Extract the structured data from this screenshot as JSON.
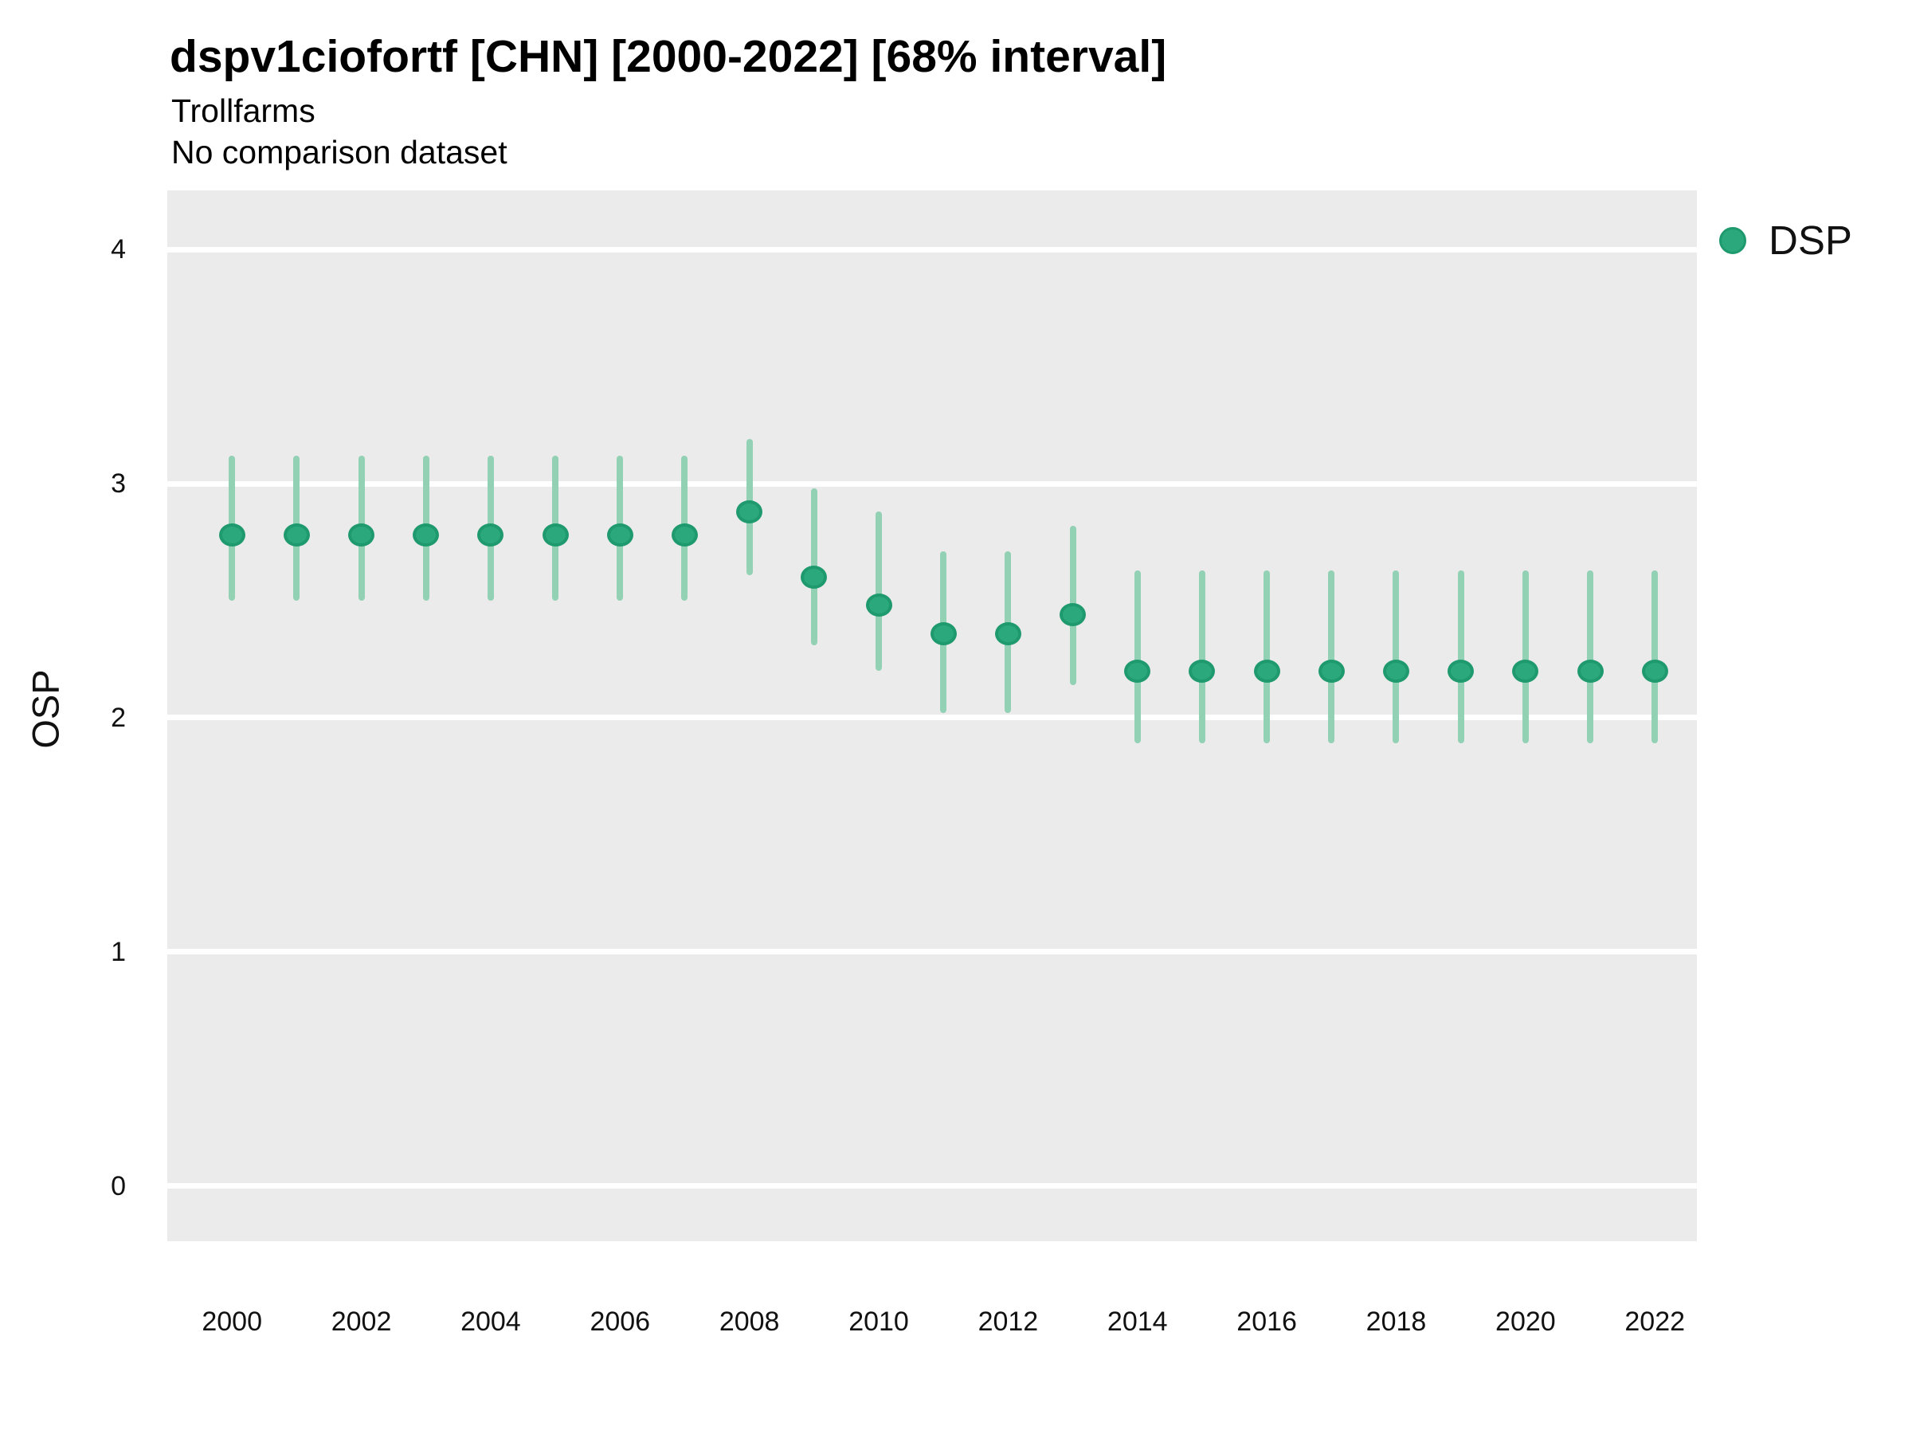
{
  "header": {
    "title": "dspv1ciofortf [CHN] [2000-2022] [68% interval]",
    "subtitle": "Trollfarms",
    "note": "No comparison dataset"
  },
  "legend": {
    "label": "DSP"
  },
  "colors": {
    "panel_background": "#EBEBEB",
    "gridline": "#FFFFFF",
    "point_fill": "#2BA87C",
    "point_stroke": "#1F9A6E",
    "interval_line": "#93D1B5",
    "text": "#111111"
  },
  "chart_data": {
    "type": "scatter",
    "variant": "pointrange",
    "title": "dspv1ciofortf [CHN] [2000-2022] [68% interval]",
    "subtitle": "Trollfarms",
    "note": "No comparison dataset",
    "interval_level": "68%",
    "xlabel": "",
    "ylabel": "OSP",
    "xlim": [
      1999.0,
      2022.65
    ],
    "ylim": [
      -0.235,
      4.252
    ],
    "xticks": [
      2000,
      2002,
      2004,
      2006,
      2008,
      2010,
      2012,
      2014,
      2016,
      2018,
      2020,
      2022
    ],
    "yticks": [
      0,
      1,
      2,
      3,
      4
    ],
    "grid": "horizontal-white-on-gray",
    "legend_position": "right",
    "series": [
      {
        "name": "DSP",
        "points": [
          {
            "x": 2000,
            "y": 2.78,
            "lo": 2.5,
            "hi": 3.12
          },
          {
            "x": 2001,
            "y": 2.78,
            "lo": 2.5,
            "hi": 3.12
          },
          {
            "x": 2002,
            "y": 2.78,
            "lo": 2.5,
            "hi": 3.12
          },
          {
            "x": 2003,
            "y": 2.78,
            "lo": 2.5,
            "hi": 3.12
          },
          {
            "x": 2004,
            "y": 2.78,
            "lo": 2.5,
            "hi": 3.12
          },
          {
            "x": 2005,
            "y": 2.78,
            "lo": 2.5,
            "hi": 3.12
          },
          {
            "x": 2006,
            "y": 2.78,
            "lo": 2.5,
            "hi": 3.12
          },
          {
            "x": 2007,
            "y": 2.78,
            "lo": 2.5,
            "hi": 3.12
          },
          {
            "x": 2008,
            "y": 2.88,
            "lo": 2.61,
            "hi": 3.19
          },
          {
            "x": 2009,
            "y": 2.6,
            "lo": 2.31,
            "hi": 2.98
          },
          {
            "x": 2010,
            "y": 2.48,
            "lo": 2.2,
            "hi": 2.88
          },
          {
            "x": 2011,
            "y": 2.36,
            "lo": 2.02,
            "hi": 2.71
          },
          {
            "x": 2012,
            "y": 2.36,
            "lo": 2.02,
            "hi": 2.71
          },
          {
            "x": 2013,
            "y": 2.44,
            "lo": 2.14,
            "hi": 2.82
          },
          {
            "x": 2014,
            "y": 2.2,
            "lo": 1.89,
            "hi": 2.63
          },
          {
            "x": 2015,
            "y": 2.2,
            "lo": 1.89,
            "hi": 2.63
          },
          {
            "x": 2016,
            "y": 2.2,
            "lo": 1.89,
            "hi": 2.63
          },
          {
            "x": 2017,
            "y": 2.2,
            "lo": 1.89,
            "hi": 2.63
          },
          {
            "x": 2018,
            "y": 2.2,
            "lo": 1.89,
            "hi": 2.63
          },
          {
            "x": 2019,
            "y": 2.2,
            "lo": 1.89,
            "hi": 2.63
          },
          {
            "x": 2020,
            "y": 2.2,
            "lo": 1.89,
            "hi": 2.63
          },
          {
            "x": 2021,
            "y": 2.2,
            "lo": 1.89,
            "hi": 2.63
          },
          {
            "x": 2022,
            "y": 2.2,
            "lo": 1.89,
            "hi": 2.63
          }
        ]
      }
    ]
  }
}
